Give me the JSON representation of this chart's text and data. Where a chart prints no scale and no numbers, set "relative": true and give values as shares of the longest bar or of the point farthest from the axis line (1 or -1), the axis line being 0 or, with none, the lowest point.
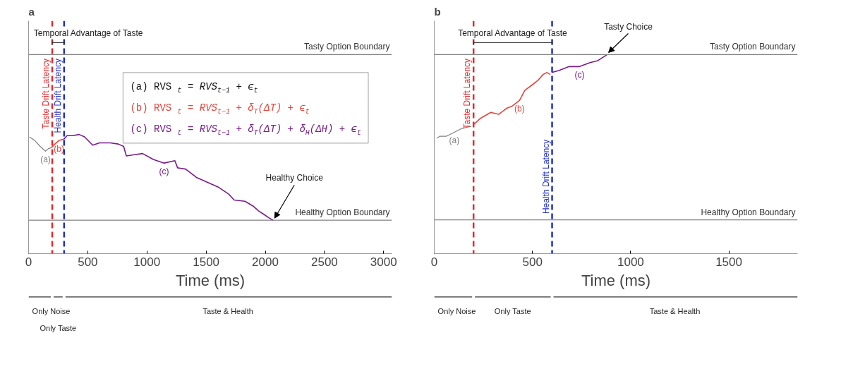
{
  "chart_data": [
    {
      "type": "line",
      "title": "a",
      "xlabel": "Time (ms)",
      "relative": true,
      "xlim": [
        0,
        3070
      ],
      "xticks": [
        0,
        500,
        1000,
        1500,
        2000,
        2500,
        3000
      ],
      "grid": false,
      "legend": false,
      "marker": "none",
      "line_style": "solid",
      "series": [
        {
          "name": "(a)",
          "color": "#808080",
          "x": [
            7,
            52,
            98,
            143,
            166,
            193
          ],
          "values": [
            0.98,
            0.95,
            0.9,
            0.86,
            0.88,
            0.89
          ]
        },
        {
          "name": "(b)",
          "color": "#e8433a",
          "x": [
            193,
            223,
            257,
            298
          ],
          "values": [
            0.89,
            0.92,
            0.95,
            0.96
          ]
        },
        {
          "name": "(c)",
          "color": "#7b1a8c",
          "x": [
            298,
            325,
            371,
            428,
            473,
            542,
            599,
            690,
            758,
            803,
            826,
            894,
            963,
            1054,
            1145,
            1236,
            1259,
            1327,
            1418,
            1509,
            1600,
            1691,
            1737,
            1828,
            1896,
            1941,
            1987,
            2032,
            2067
          ],
          "values": [
            0.96,
            0.99,
            0.99,
            1.0,
            0.98,
            0.91,
            0.93,
            0.93,
            0.92,
            0.9,
            0.82,
            0.83,
            0.84,
            0.79,
            0.76,
            0.78,
            0.72,
            0.71,
            0.64,
            0.6,
            0.56,
            0.5,
            0.45,
            0.44,
            0.4,
            0.36,
            0.33,
            0.3,
            0.28
          ]
        }
      ],
      "ref_lines": [
        {
          "axis": "x",
          "value": 200,
          "label": "Taste Drift Latency",
          "color": "#e8262a",
          "line_style": "dashed"
        },
        {
          "axis": "x",
          "value": 300,
          "label": "Health Drift Latency",
          "color": "#1f2fd0",
          "line_style": "dashed"
        },
        {
          "axis": "y",
          "value": 1.67,
          "label": "Tasty Option Boundary",
          "color": "#808080"
        },
        {
          "axis": "y",
          "value": 0.28,
          "label": "Healthy Option Boundary",
          "color": "#808080"
        }
      ],
      "annotations": [
        "Temporal Advantage of Taste",
        {
          "text": "Healthy Choice",
          "x": 2067,
          "y": 0.28
        },
        "Only Noise",
        "Only Taste",
        "Taste & Health",
        "(a)  RVS$_{t}$ = RVS$_{t−1}$ + ϵ$_{t}$",
        "(b)  RVS$_{t}$ = RVS$_{t−1}$ + δ$_{T}$(ΔT) + ϵ$_{t}$",
        "(c)  RVS$_{t}$ = RVS$_{t−1}$ + δ$_{T}$(ΔT) + δ$_{H}$(ΔH) + ϵ$_{t}$"
      ]
    },
    {
      "type": "line",
      "title": "b",
      "xlabel": "Time (ms)",
      "relative": true,
      "xlim": [
        0,
        1850
      ],
      "xticks": [
        0,
        500,
        1000,
        1500
      ],
      "grid": false,
      "legend": false,
      "marker": "none",
      "line_style": "solid",
      "series": [
        {
          "name": "(a)",
          "color": "#808080",
          "x": [
            13,
            29,
            62,
            102,
            142,
            189
          ],
          "values": [
            0.58,
            0.59,
            0.59,
            0.61,
            0.63,
            0.64
          ]
        },
        {
          "name": "(b)",
          "color": "#e8433a",
          "x": [
            202,
            235,
            288,
            328,
            368,
            394,
            434,
            461,
            501,
            527,
            554,
            574,
            591
          ],
          "values": [
            0.65,
            0.68,
            0.71,
            0.7,
            0.73,
            0.74,
            0.77,
            0.82,
            0.85,
            0.87,
            0.9,
            0.91,
            0.9
          ]
        },
        {
          "name": "(c)",
          "color": "#7b1a8c",
          "x": [
            598,
            634,
            687,
            740,
            793,
            833,
            880
          ],
          "values": [
            0.91,
            0.92,
            0.94,
            0.94,
            0.96,
            0.97,
            1.0
          ]
        }
      ],
      "ref_lines": [
        {
          "axis": "x",
          "value": 200,
          "label": "Taste Drift Latency",
          "color": "#e8262a",
          "line_style": "dashed"
        },
        {
          "axis": "x",
          "value": 600,
          "label": "Health Drift Latency",
          "color": "#1f2fd0",
          "line_style": "dashed"
        },
        {
          "axis": "y",
          "value": 1.0,
          "label": "Tasty Option Boundary",
          "color": "#808080"
        },
        {
          "axis": "y",
          "value": 0.17,
          "label": "Healthy Option Boundary",
          "color": "#808080"
        }
      ],
      "annotations": [
        "Temporal Advantage of Taste",
        {
          "text": "Tasty Choice",
          "x": 880,
          "y": 1.0
        },
        "Only Noise",
        "Only Taste",
        "Taste & Health"
      ]
    }
  ]
}
